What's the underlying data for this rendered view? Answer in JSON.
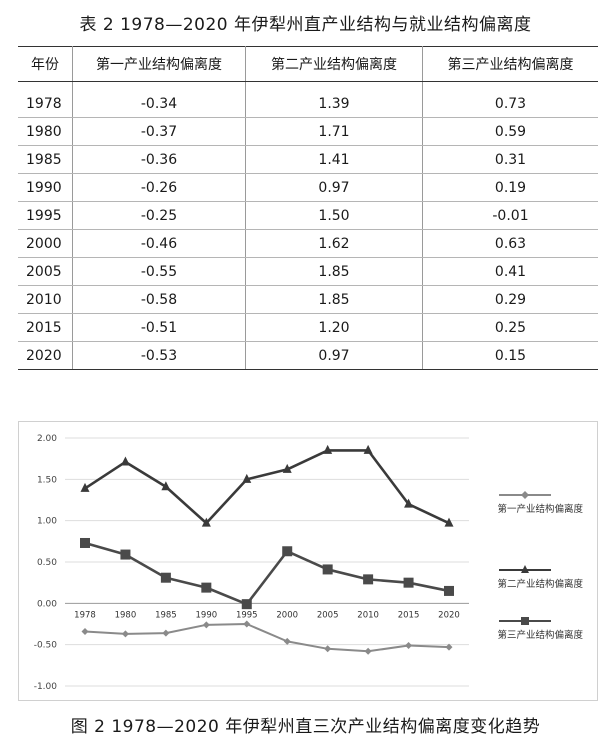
{
  "table": {
    "caption": "表 2  1978—2020 年伊犁州直产业结构与就业结构偏离度",
    "headers": [
      "年份",
      "第一产业结构偏离度",
      "第二产业结构偏离度",
      "第三产业结构偏离度"
    ],
    "rows": [
      [
        "1978",
        "-0.34",
        "1.39",
        "0.73"
      ],
      [
        "1980",
        "-0.37",
        "1.71",
        "0.59"
      ],
      [
        "1985",
        "-0.36",
        "1.41",
        "0.31"
      ],
      [
        "1990",
        "-0.26",
        "0.97",
        "0.19"
      ],
      [
        "1995",
        "-0.25",
        "1.50",
        "-0.01"
      ],
      [
        "2000",
        "-0.46",
        "1.62",
        "0.63"
      ],
      [
        "2005",
        "-0.55",
        "1.85",
        "0.41"
      ],
      [
        "2010",
        "-0.58",
        "1.85",
        "0.29"
      ],
      [
        "2015",
        "-0.51",
        "1.20",
        "0.25"
      ],
      [
        "2020",
        "-0.53",
        "0.97",
        "0.15"
      ]
    ]
  },
  "figure": {
    "caption": "图 2  1978—2020 年伊犁州直三次产业结构偏离度变化趋势"
  },
  "chart_data": {
    "type": "line",
    "title": "",
    "xlabel": "",
    "ylabel": "",
    "categories": [
      "1978",
      "1980",
      "1985",
      "1990",
      "1995",
      "2000",
      "2005",
      "2010",
      "2015",
      "2020"
    ],
    "y_ticks": [
      "2.00",
      "1.50",
      "1.00",
      "0.50",
      "0.00",
      "-0.50",
      "-1.00"
    ],
    "ylim": [
      -1.0,
      2.0
    ],
    "grid": true,
    "legend_position": "right",
    "series": [
      {
        "name": "第一产业结构偏离度",
        "marker": "diamond",
        "color": "#8a8a8a",
        "values": [
          -0.34,
          -0.37,
          -0.36,
          -0.26,
          -0.25,
          -0.46,
          -0.55,
          -0.58,
          -0.51,
          -0.53
        ]
      },
      {
        "name": "第二产业结构偏离度",
        "marker": "triangle",
        "color": "#3a3a3a",
        "values": [
          1.39,
          1.71,
          1.41,
          0.97,
          1.5,
          1.62,
          1.85,
          1.85,
          1.2,
          0.97
        ]
      },
      {
        "name": "第三产业结构偏离度",
        "marker": "square",
        "color": "#4a4a4a",
        "values": [
          0.73,
          0.59,
          0.31,
          0.19,
          -0.01,
          0.63,
          0.41,
          0.29,
          0.25,
          0.15
        ]
      }
    ]
  }
}
